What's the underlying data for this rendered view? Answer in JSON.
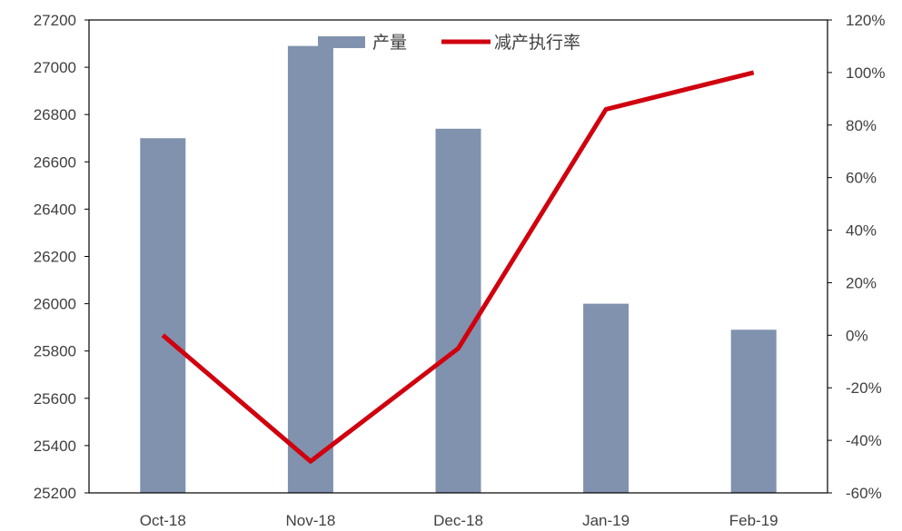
{
  "chart_data": {
    "type": "bar",
    "categories": [
      "Oct-18",
      "Nov-18",
      "Dec-18",
      "Jan-19",
      "Feb-19"
    ],
    "series": [
      {
        "name": "产量",
        "type": "bar",
        "axis": "left",
        "values": [
          26700,
          27090,
          26740,
          26000,
          25890
        ]
      },
      {
        "name": "减产执行率",
        "type": "line",
        "axis": "right",
        "values": [
          0,
          -48,
          -5,
          86,
          100
        ]
      }
    ],
    "ylim": [
      25200,
      27200
    ],
    "y_ticks": [
      25200,
      25400,
      25600,
      25800,
      26000,
      26200,
      26400,
      26600,
      26800,
      27000,
      27200
    ],
    "y2lim": [
      -60,
      120
    ],
    "y2_ticks": [
      "-60%",
      "-40%",
      "-20%",
      "0%",
      "20%",
      "40%",
      "60%",
      "80%",
      "100%",
      "120%"
    ],
    "grid": false,
    "legend_position": "top-center",
    "colors": {
      "bar": "#8092AE",
      "line": "#D0000E",
      "axis": "#000000"
    }
  }
}
